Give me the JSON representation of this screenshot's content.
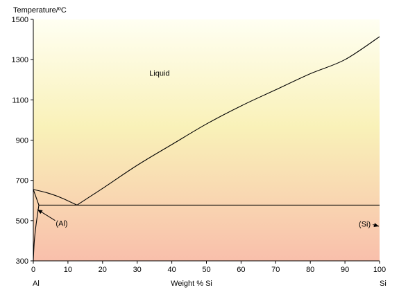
{
  "chart_data": {
    "type": "line",
    "xlabel": "Weight % Si",
    "ylabel": "Temperature/ºC",
    "xlim": [
      0,
      100
    ],
    "ylim": [
      300,
      1500
    ],
    "x_ticks": [
      0,
      10,
      20,
      30,
      40,
      50,
      60,
      70,
      80,
      90,
      100
    ],
    "y_ticks": [
      300,
      500,
      700,
      900,
      1100,
      1300,
      1500
    ],
    "end_labels": {
      "left": "Al",
      "right": "Si"
    },
    "grid": false,
    "series": [
      {
        "values": [
          [
            0,
            655
          ],
          [
            4,
            638
          ],
          [
            8,
            614
          ],
          [
            12.6,
            577
          ]
        ]
      },
      {
        "values": [
          [
            12.6,
            577
          ],
          [
            20,
            660
          ],
          [
            30,
            775
          ],
          [
            40,
            878
          ],
          [
            50,
            980
          ],
          [
            60,
            1070
          ],
          [
            70,
            1150
          ],
          [
            80,
            1230
          ],
          [
            90,
            1300
          ],
          [
            100,
            1414
          ]
        ]
      },
      {
        "values": [
          [
            0,
            655
          ],
          [
            1.6,
            577
          ]
        ]
      },
      {
        "values": [
          [
            0,
            300
          ],
          [
            0.3,
            400
          ],
          [
            0.8,
            480
          ],
          [
            1.6,
            577
          ]
        ]
      },
      {
        "values": [
          [
            1.6,
            577
          ],
          [
            100,
            577
          ]
        ]
      }
    ],
    "annotations": [
      {
        "text": "Liquid",
        "x": 33.5,
        "y": 1220
      },
      {
        "text": "(Al)",
        "x": 6.5,
        "y": 473,
        "arrow_to": [
          1.2,
          555
        ]
      },
      {
        "text": "(Si)",
        "x": 94,
        "y": 470,
        "arrow_to": [
          99.8,
          472
        ]
      }
    ],
    "colors": {
      "gradient_top": "#fffff2",
      "gradient_mid": "#f9f1b8",
      "gradient_bottom": "#f9bfab",
      "line": "#000000"
    }
  }
}
